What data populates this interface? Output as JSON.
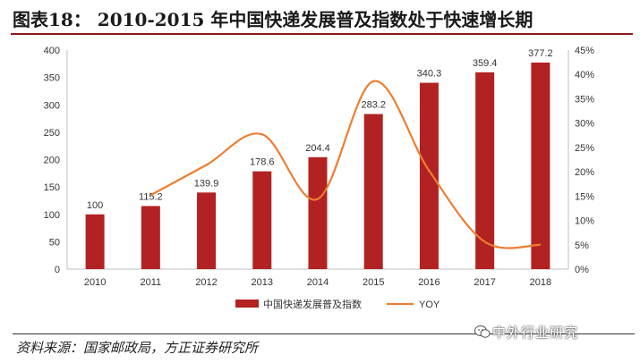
{
  "header": {
    "title": "图表18： 2010-2015 年中国快递发展普及指数处于快速增长期"
  },
  "footer": {
    "source": "资料来源：国家邮政局，方正证券研究所",
    "watermark": "中外行业研究"
  },
  "colors": {
    "bar": "#b22222",
    "line": "#ed7d31",
    "rule": "#8b1a1a"
  },
  "chart_data": {
    "type": "bar",
    "categories": [
      "2010",
      "2011",
      "2012",
      "2013",
      "2014",
      "2015",
      "2016",
      "2017",
      "2018"
    ],
    "series": [
      {
        "name": "中国快递发展普及指数",
        "type": "bar",
        "axis": "left",
        "values": [
          100,
          115.2,
          139.9,
          178.6,
          204.4,
          283.2,
          340.3,
          359.4,
          377.2
        ],
        "labels": [
          "100",
          "115.2",
          "139.9",
          "178.6",
          "204.4",
          "283.2",
          "340.3",
          "359.4",
          "377.2"
        ]
      },
      {
        "name": "YOY",
        "type": "line",
        "axis": "right",
        "values": [
          null,
          0.152,
          0.214,
          0.277,
          0.144,
          0.386,
          0.202,
          0.056,
          0.05
        ]
      }
    ],
    "y_left": {
      "min": 0,
      "max": 400,
      "ticks": [
        0,
        50,
        100,
        150,
        200,
        250,
        300,
        350,
        400
      ]
    },
    "y_right": {
      "min": 0,
      "max": 0.45,
      "ticks": [
        0,
        0.05,
        0.1,
        0.15,
        0.2,
        0.25,
        0.3,
        0.35,
        0.4,
        0.45
      ],
      "tick_labels": [
        "0%",
        "5%",
        "10%",
        "15%",
        "20%",
        "25%",
        "30%",
        "35%",
        "40%",
        "45%"
      ]
    },
    "legend": {
      "position": "bottom",
      "entries": [
        "中国快递发展普及指数",
        "YOY"
      ]
    },
    "grid": false
  }
}
